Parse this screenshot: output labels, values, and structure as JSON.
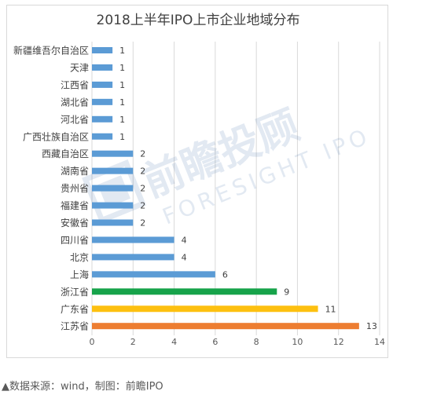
{
  "chart_data": {
    "type": "bar",
    "orientation": "horizontal",
    "title": "2018上半年IPO上市企业地域分布",
    "categories": [
      "新疆维吾尔自治区",
      "天津",
      "江西省",
      "湖北省",
      "河北省",
      "广西壮族自治区",
      "西藏自治区",
      "湖南省",
      "贵州省",
      "福建省",
      "安徽省",
      "四川省",
      "北京",
      "上海",
      "浙江省",
      "广东省",
      "江苏省"
    ],
    "values": [
      1,
      1,
      1,
      1,
      1,
      1,
      2,
      2,
      2,
      2,
      2,
      4,
      4,
      6,
      9,
      11,
      13
    ],
    "bar_colors": [
      "#5b9bd5",
      "#5b9bd5",
      "#5b9bd5",
      "#5b9bd5",
      "#5b9bd5",
      "#5b9bd5",
      "#5b9bd5",
      "#5b9bd5",
      "#5b9bd5",
      "#5b9bd5",
      "#5b9bd5",
      "#5b9bd5",
      "#5b9bd5",
      "#5b9bd5",
      "#16a34a",
      "#fdc010",
      "#ed7d31"
    ],
    "xlim": [
      0,
      14
    ],
    "xticks": [
      0,
      2,
      4,
      6,
      8,
      10,
      12,
      14
    ],
    "grid": "vertical",
    "legend": "none",
    "xlabel": "",
    "ylabel": ""
  },
  "watermark": {
    "brand_cn": "前瞻投顾",
    "brand_en": "FORESIGHT IPO"
  },
  "source_note": "▲数据来源：wind，制图：前瞻IPO"
}
